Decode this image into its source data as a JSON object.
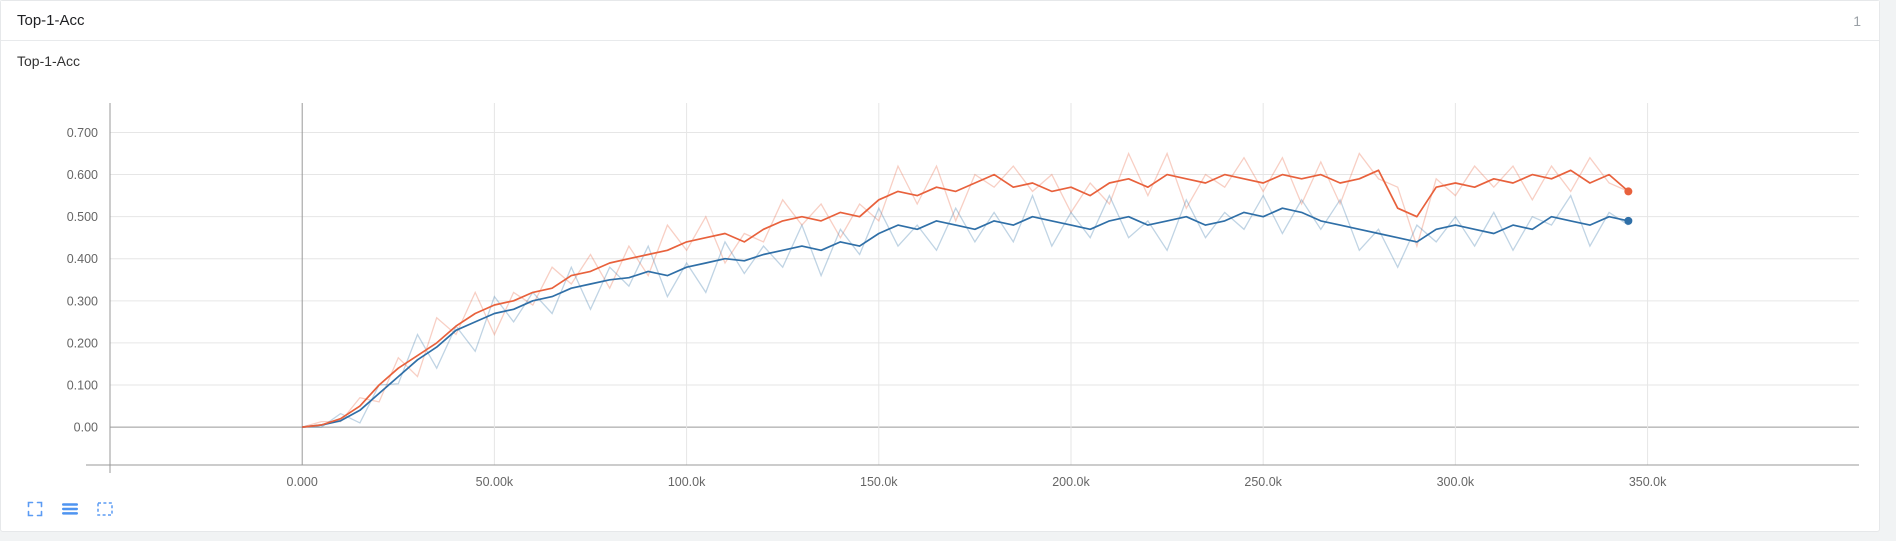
{
  "header": {
    "title": "Top-1-Acc",
    "count": "1"
  },
  "chart": {
    "title": "Top-1-Acc"
  },
  "toolbar": {
    "buttons": [
      {
        "icon": "maximize-icon"
      },
      {
        "icon": "data-list-icon"
      },
      {
        "icon": "box-zoom-icon"
      }
    ],
    "accent_color": "#5b9bf3"
  },
  "chart_data": {
    "type": "line",
    "title": "Top-1-Acc",
    "xlabel": "",
    "ylabel": "",
    "grid": true,
    "xlim": [
      -50000,
      405000
    ],
    "ylim": [
      -0.09,
      0.77
    ],
    "grid_color": "#e6e6e6",
    "axis_color": "#999999",
    "x_ticks": [
      0,
      50000,
      100000,
      150000,
      200000,
      250000,
      300000,
      350000
    ],
    "x_tick_labels": [
      "0.000",
      "50.00k",
      "100.0k",
      "150.0k",
      "200.0k",
      "250.0k",
      "300.0k",
      "350.0k"
    ],
    "y_ticks": [
      0,
      0.1,
      0.2,
      0.3,
      0.4,
      0.5,
      0.6,
      0.7
    ],
    "y_tick_labels": [
      "0.00",
      "0.100",
      "0.200",
      "0.300",
      "0.400",
      "0.500",
      "0.600",
      "0.700"
    ],
    "x": [
      0,
      5000,
      10000,
      15000,
      20000,
      25000,
      30000,
      35000,
      40000,
      45000,
      50000,
      55000,
      60000,
      65000,
      70000,
      75000,
      80000,
      85000,
      90000,
      95000,
      100000,
      105000,
      110000,
      115000,
      120000,
      125000,
      130000,
      135000,
      140000,
      145000,
      150000,
      155000,
      160000,
      165000,
      170000,
      175000,
      180000,
      185000,
      190000,
      195000,
      200000,
      205000,
      210000,
      215000,
      220000,
      225000,
      230000,
      235000,
      240000,
      245000,
      250000,
      255000,
      260000,
      265000,
      270000,
      275000,
      280000,
      285000,
      290000,
      295000,
      300000,
      305000,
      310000,
      315000,
      320000,
      325000,
      330000,
      335000,
      340000,
      345000
    ],
    "series": [
      {
        "name": "orange-series",
        "color": "#e8613c",
        "smoothed": [
          0,
          0.005,
          0.02,
          0.05,
          0.1,
          0.14,
          0.17,
          0.2,
          0.24,
          0.27,
          0.29,
          0.3,
          0.32,
          0.33,
          0.36,
          0.37,
          0.39,
          0.4,
          0.41,
          0.42,
          0.44,
          0.45,
          0.46,
          0.44,
          0.47,
          0.49,
          0.5,
          0.49,
          0.51,
          0.5,
          0.54,
          0.56,
          0.55,
          0.57,
          0.56,
          0.58,
          0.6,
          0.57,
          0.58,
          0.56,
          0.57,
          0.55,
          0.58,
          0.59,
          0.57,
          0.6,
          0.59,
          0.58,
          0.6,
          0.59,
          0.58,
          0.6,
          0.59,
          0.6,
          0.58,
          0.59,
          0.61,
          0.52,
          0.5,
          0.57,
          0.58,
          0.57,
          0.59,
          0.58,
          0.6,
          0.59,
          0.61,
          0.58,
          0.6,
          0.56
        ],
        "raw": [
          0,
          0.013,
          0.013,
          0.07,
          0.06,
          0.165,
          0.12,
          0.26,
          0.22,
          0.32,
          0.22,
          0.32,
          0.29,
          0.38,
          0.34,
          0.41,
          0.33,
          0.43,
          0.36,
          0.48,
          0.42,
          0.5,
          0.39,
          0.46,
          0.44,
          0.54,
          0.48,
          0.53,
          0.45,
          0.53,
          0.49,
          0.62,
          0.53,
          0.62,
          0.49,
          0.6,
          0.57,
          0.62,
          0.56,
          0.6,
          0.51,
          0.58,
          0.53,
          0.65,
          0.55,
          0.65,
          0.52,
          0.6,
          0.57,
          0.64,
          0.56,
          0.64,
          0.53,
          0.63,
          0.53,
          0.65,
          0.59,
          0.57,
          0.43,
          0.59,
          0.55,
          0.62,
          0.57,
          0.62,
          0.54,
          0.62,
          0.56,
          0.64,
          0.58,
          0.56
        ]
      },
      {
        "name": "blue-series",
        "color": "#2f6fa7",
        "smoothed": [
          0,
          0.005,
          0.015,
          0.04,
          0.08,
          0.12,
          0.16,
          0.19,
          0.23,
          0.25,
          0.27,
          0.28,
          0.3,
          0.31,
          0.33,
          0.34,
          0.35,
          0.355,
          0.37,
          0.36,
          0.38,
          0.39,
          0.4,
          0.395,
          0.41,
          0.42,
          0.43,
          0.42,
          0.44,
          0.43,
          0.46,
          0.48,
          0.47,
          0.49,
          0.48,
          0.47,
          0.49,
          0.48,
          0.5,
          0.49,
          0.48,
          0.47,
          0.49,
          0.5,
          0.48,
          0.49,
          0.5,
          0.48,
          0.49,
          0.51,
          0.5,
          0.52,
          0.51,
          0.49,
          0.48,
          0.47,
          0.46,
          0.45,
          0.44,
          0.47,
          0.48,
          0.47,
          0.46,
          0.48,
          0.47,
          0.5,
          0.49,
          0.48,
          0.5,
          0.49
        ],
        "raw": [
          0,
          0,
          0.032,
          0.01,
          0.1,
          0.103,
          0.22,
          0.14,
          0.24,
          0.18,
          0.31,
          0.25,
          0.32,
          0.27,
          0.38,
          0.28,
          0.38,
          0.335,
          0.43,
          0.31,
          0.39,
          0.32,
          0.44,
          0.365,
          0.43,
          0.38,
          0.48,
          0.36,
          0.47,
          0.41,
          0.52,
          0.43,
          0.48,
          0.42,
          0.52,
          0.44,
          0.51,
          0.44,
          0.55,
          0.43,
          0.51,
          0.45,
          0.55,
          0.45,
          0.49,
          0.42,
          0.54,
          0.45,
          0.51,
          0.47,
          0.55,
          0.46,
          0.54,
          0.47,
          0.54,
          0.42,
          0.47,
          0.38,
          0.48,
          0.44,
          0.5,
          0.43,
          0.51,
          0.42,
          0.5,
          0.48,
          0.55,
          0.43,
          0.51,
          0.48
        ]
      }
    ]
  }
}
